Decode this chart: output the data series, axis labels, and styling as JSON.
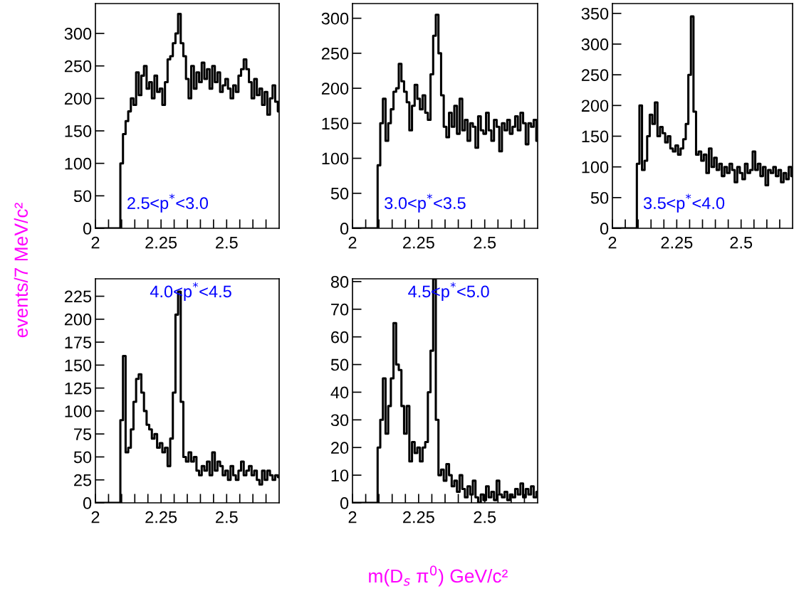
{
  "chart_data": [
    {
      "type": "step",
      "ylabel": "events/7 MeV/c²",
      "annotations": [
        "2.5<p$^{*}$<3.0"
      ],
      "color": "#000000",
      "x": [
        2.0,
        2.01,
        2.02,
        2.03,
        2.04,
        2.05,
        2.06,
        2.07,
        2.08,
        2.09,
        2.1,
        2.11,
        2.12,
        2.13,
        2.14,
        2.15,
        2.16,
        2.17,
        2.18,
        2.19,
        2.2,
        2.21,
        2.22,
        2.23,
        2.24,
        2.25,
        2.26,
        2.27,
        2.28,
        2.29,
        2.3,
        2.31,
        2.32,
        2.33,
        2.34,
        2.35,
        2.36,
        2.37,
        2.38,
        2.39,
        2.4,
        2.41,
        2.42,
        2.43,
        2.44,
        2.45,
        2.46,
        2.47,
        2.48,
        2.49,
        2.5,
        2.51,
        2.52,
        2.53,
        2.54,
        2.55,
        2.56,
        2.57,
        2.58,
        2.59,
        2.6,
        2.61,
        2.62,
        2.63,
        2.64,
        2.65,
        2.66,
        2.67,
        2.68,
        2.69,
        2.7
      ],
      "values": [
        0,
        0,
        0,
        0,
        0,
        0,
        0,
        0,
        0,
        0,
        100,
        145,
        165,
        180,
        200,
        190,
        240,
        205,
        235,
        250,
        215,
        225,
        200,
        235,
        210,
        215,
        190,
        225,
        260,
        265,
        285,
        300,
        330,
        285,
        265,
        230,
        200,
        250,
        215,
        240,
        225,
        255,
        230,
        245,
        215,
        250,
        225,
        240,
        210,
        220,
        230,
        215,
        200,
        220,
        210,
        235,
        245,
        260,
        245,
        225,
        200,
        230,
        205,
        215,
        190,
        210,
        175,
        200,
        220,
        195,
        180
      ],
      "xlim": [
        2,
        2.7
      ],
      "xticks": [
        2,
        {
          "value": 2.05,
          "label": null
        },
        {
          "value": 2.1,
          "label": null
        },
        {
          "value": 2.15,
          "label": null
        },
        {
          "value": 2.2,
          "label": null
        },
        2.25,
        {
          "value": 2.3,
          "label": null
        },
        {
          "value": 2.35,
          "label": null
        },
        {
          "value": 2.4,
          "label": null
        },
        {
          "value": 2.45,
          "label": null
        },
        2.5,
        {
          "value": 2.55,
          "label": null
        },
        {
          "value": 2.6,
          "label": null
        },
        {
          "value": 2.65,
          "label": null
        }
      ],
      "ylim": [
        0,
        346
      ],
      "yticks": [
        0,
        50,
        100,
        150,
        200,
        250,
        300
      ]
    },
    {
      "type": "step",
      "annotations": [
        "3.0<p$^{*}$<3.5"
      ],
      "color": "#000000",
      "x": [
        2.0,
        2.01,
        2.02,
        2.03,
        2.04,
        2.05,
        2.06,
        2.07,
        2.08,
        2.09,
        2.1,
        2.11,
        2.12,
        2.13,
        2.14,
        2.15,
        2.16,
        2.17,
        2.18,
        2.19,
        2.2,
        2.21,
        2.22,
        2.23,
        2.24,
        2.25,
        2.26,
        2.27,
        2.28,
        2.29,
        2.3,
        2.31,
        2.32,
        2.33,
        2.34,
        2.35,
        2.36,
        2.37,
        2.38,
        2.39,
        2.4,
        2.41,
        2.42,
        2.43,
        2.44,
        2.45,
        2.46,
        2.47,
        2.48,
        2.49,
        2.5,
        2.51,
        2.52,
        2.53,
        2.54,
        2.55,
        2.56,
        2.57,
        2.58,
        2.59,
        2.6,
        2.61,
        2.62,
        2.63,
        2.64,
        2.65,
        2.66,
        2.67,
        2.68,
        2.69,
        2.7
      ],
      "values": [
        0,
        0,
        0,
        0,
        0,
        0,
        0,
        0,
        0,
        0,
        90,
        150,
        185,
        125,
        150,
        170,
        195,
        200,
        235,
        210,
        195,
        180,
        140,
        175,
        205,
        185,
        170,
        190,
        165,
        155,
        220,
        275,
        305,
        250,
        190,
        145,
        130,
        165,
        145,
        175,
        135,
        185,
        140,
        155,
        125,
        150,
        145,
        115,
        160,
        140,
        135,
        165,
        140,
        125,
        155,
        145,
        110,
        150,
        140,
        155,
        135,
        145,
        160,
        140,
        165,
        150,
        120,
        150,
        145,
        155,
        125
      ],
      "xlim": [
        2,
        2.7
      ],
      "xticks": [
        2,
        {
          "value": 2.05,
          "label": null
        },
        {
          "value": 2.1,
          "label": null
        },
        {
          "value": 2.15,
          "label": null
        },
        {
          "value": 2.2,
          "label": null
        },
        2.25,
        {
          "value": 2.3,
          "label": null
        },
        {
          "value": 2.35,
          "label": null
        },
        {
          "value": 2.4,
          "label": null
        },
        {
          "value": 2.45,
          "label": null
        },
        2.5,
        {
          "value": 2.55,
          "label": null
        },
        {
          "value": 2.6,
          "label": null
        },
        {
          "value": 2.65,
          "label": null
        }
      ],
      "ylim": [
        0,
        321
      ],
      "yticks": [
        0,
        50,
        100,
        150,
        200,
        250,
        300
      ]
    },
    {
      "type": "step",
      "annotations": [
        "3.5<p$^{*}$<4.0"
      ],
      "color": "#000000",
      "x": [
        2.0,
        2.01,
        2.02,
        2.03,
        2.04,
        2.05,
        2.06,
        2.07,
        2.08,
        2.09,
        2.1,
        2.11,
        2.12,
        2.13,
        2.14,
        2.15,
        2.16,
        2.17,
        2.18,
        2.19,
        2.2,
        2.21,
        2.22,
        2.23,
        2.24,
        2.25,
        2.26,
        2.27,
        2.28,
        2.29,
        2.3,
        2.31,
        2.32,
        2.33,
        2.34,
        2.35,
        2.36,
        2.37,
        2.38,
        2.39,
        2.4,
        2.41,
        2.42,
        2.43,
        2.44,
        2.45,
        2.46,
        2.47,
        2.48,
        2.49,
        2.5,
        2.51,
        2.52,
        2.53,
        2.54,
        2.55,
        2.56,
        2.57,
        2.58,
        2.59,
        2.6,
        2.61,
        2.62,
        2.63,
        2.64,
        2.65,
        2.66,
        2.67,
        2.68,
        2.69,
        2.7
      ],
      "values": [
        0,
        0,
        0,
        0,
        0,
        0,
        0,
        0,
        0,
        0,
        105,
        200,
        95,
        110,
        150,
        185,
        170,
        205,
        150,
        165,
        155,
        140,
        150,
        130,
        125,
        135,
        120,
        130,
        145,
        170,
        250,
        345,
        190,
        120,
        125,
        110,
        120,
        90,
        130,
        100,
        115,
        95,
        105,
        85,
        100,
        90,
        105,
        95,
        75,
        100,
        90,
        80,
        105,
        90,
        95,
        125,
        95,
        105,
        85,
        100,
        70,
        95,
        90,
        100,
        85,
        95,
        75,
        90,
        80,
        100,
        85
      ],
      "xlim": [
        2,
        2.7
      ],
      "xticks": [
        2,
        {
          "value": 2.05,
          "label": null
        },
        {
          "value": 2.1,
          "label": null
        },
        {
          "value": 2.15,
          "label": null
        },
        {
          "value": 2.2,
          "label": null
        },
        2.25,
        {
          "value": 2.3,
          "label": null
        },
        {
          "value": 2.35,
          "label": null
        },
        {
          "value": 2.4,
          "label": null
        },
        {
          "value": 2.45,
          "label": null
        },
        2.5,
        {
          "value": 2.55,
          "label": null
        },
        {
          "value": 2.6,
          "label": null
        },
        {
          "value": 2.65,
          "label": null
        }
      ],
      "ylim": [
        0,
        366
      ],
      "yticks": [
        0,
        50,
        100,
        150,
        200,
        250,
        300,
        350
      ]
    },
    {
      "type": "step",
      "annotations": [
        "4.0<p$^{*}$<4.5"
      ],
      "color": "#000000",
      "x": [
        2.0,
        2.01,
        2.02,
        2.03,
        2.04,
        2.05,
        2.06,
        2.07,
        2.08,
        2.09,
        2.1,
        2.11,
        2.12,
        2.13,
        2.14,
        2.15,
        2.16,
        2.17,
        2.18,
        2.19,
        2.2,
        2.21,
        2.22,
        2.23,
        2.24,
        2.25,
        2.26,
        2.27,
        2.28,
        2.29,
        2.3,
        2.31,
        2.32,
        2.33,
        2.34,
        2.35,
        2.36,
        2.37,
        2.38,
        2.39,
        2.4,
        2.41,
        2.42,
        2.43,
        2.44,
        2.45,
        2.46,
        2.47,
        2.48,
        2.49,
        2.5,
        2.51,
        2.52,
        2.53,
        2.54,
        2.55,
        2.56,
        2.57,
        2.58,
        2.59,
        2.6,
        2.61,
        2.62,
        2.63,
        2.64,
        2.65,
        2.66,
        2.67,
        2.68,
        2.69,
        2.7
      ],
      "values": [
        0,
        0,
        0,
        0,
        0,
        0,
        0,
        0,
        0,
        0,
        90,
        160,
        55,
        60,
        80,
        110,
        135,
        140,
        120,
        100,
        85,
        80,
        70,
        75,
        60,
        65,
        55,
        60,
        40,
        70,
        120,
        205,
        230,
        110,
        50,
        45,
        55,
        45,
        50,
        35,
        30,
        40,
        35,
        45,
        30,
        55,
        35,
        45,
        40,
        30,
        35,
        25,
        40,
        30,
        25,
        35,
        45,
        30,
        35,
        40,
        30,
        35,
        25,
        20,
        35,
        25,
        35,
        30,
        25,
        30,
        28
      ],
      "xlim": [
        2,
        2.7
      ],
      "xticks": [
        2,
        {
          "value": 2.05,
          "label": null
        },
        {
          "value": 2.1,
          "label": null
        },
        {
          "value": 2.15,
          "label": null
        },
        {
          "value": 2.2,
          "label": null
        },
        2.25,
        {
          "value": 2.3,
          "label": null
        },
        {
          "value": 2.35,
          "label": null
        },
        {
          "value": 2.4,
          "label": null
        },
        {
          "value": 2.45,
          "label": null
        },
        2.5,
        {
          "value": 2.55,
          "label": null
        },
        {
          "value": 2.6,
          "label": null
        },
        {
          "value": 2.65,
          "label": null
        }
      ],
      "ylim": [
        0,
        244
      ],
      "yticks": [
        0,
        25,
        50,
        75,
        100,
        125,
        150,
        175,
        200,
        225
      ]
    },
    {
      "type": "step",
      "xlabel": "m(D$_{s}$ π$^{0}$) GeV/c²",
      "annotations": [
        "4.5<p$^{*}$<5.0"
      ],
      "color": "#000000",
      "x": [
        2.0,
        2.01,
        2.02,
        2.03,
        2.04,
        2.05,
        2.06,
        2.07,
        2.08,
        2.09,
        2.1,
        2.11,
        2.12,
        2.13,
        2.14,
        2.15,
        2.16,
        2.17,
        2.18,
        2.19,
        2.2,
        2.21,
        2.22,
        2.23,
        2.24,
        2.25,
        2.26,
        2.27,
        2.28,
        2.29,
        2.3,
        2.31,
        2.32,
        2.33,
        2.34,
        2.35,
        2.36,
        2.37,
        2.38,
        2.39,
        2.4,
        2.41,
        2.42,
        2.43,
        2.44,
        2.45,
        2.46,
        2.47,
        2.48,
        2.49,
        2.5,
        2.51,
        2.52,
        2.53,
        2.54,
        2.55,
        2.56,
        2.57,
        2.58,
        2.59,
        2.6,
        2.61,
        2.62,
        2.63,
        2.64,
        2.65,
        2.66,
        2.67,
        2.68,
        2.69,
        2.7
      ],
      "values": [
        0,
        0,
        0,
        0,
        0,
        0,
        0,
        0,
        0,
        0,
        20,
        30,
        45,
        25,
        35,
        45,
        65,
        50,
        48,
        35,
        25,
        35,
        15,
        22,
        18,
        20,
        15,
        20,
        22,
        40,
        55,
        81,
        30,
        10,
        12,
        8,
        14,
        10,
        6,
        8,
        4,
        10,
        5,
        2,
        6,
        3,
        8,
        2,
        0,
        3,
        1,
        6,
        2,
        4,
        1,
        8,
        3,
        2,
        4,
        1,
        3,
        2,
        5,
        3,
        7,
        2,
        5,
        3,
        6,
        2,
        4
      ],
      "xlim": [
        2,
        2.7
      ],
      "xticks": [
        2,
        {
          "value": 2.05,
          "label": null
        },
        {
          "value": 2.1,
          "label": null
        },
        {
          "value": 2.15,
          "label": null
        },
        {
          "value": 2.2,
          "label": null
        },
        2.25,
        {
          "value": 2.3,
          "label": null
        },
        {
          "value": 2.35,
          "label": null
        },
        {
          "value": 2.4,
          "label": null
        },
        {
          "value": 2.45,
          "label": null
        },
        2.5,
        {
          "value": 2.55,
          "label": null
        },
        {
          "value": 2.6,
          "label": null
        },
        {
          "value": 2.65,
          "label": null
        }
      ],
      "ylim": [
        0,
        81
      ],
      "yticks": [
        0,
        10,
        20,
        30,
        40,
        50,
        60,
        70,
        80
      ]
    }
  ]
}
